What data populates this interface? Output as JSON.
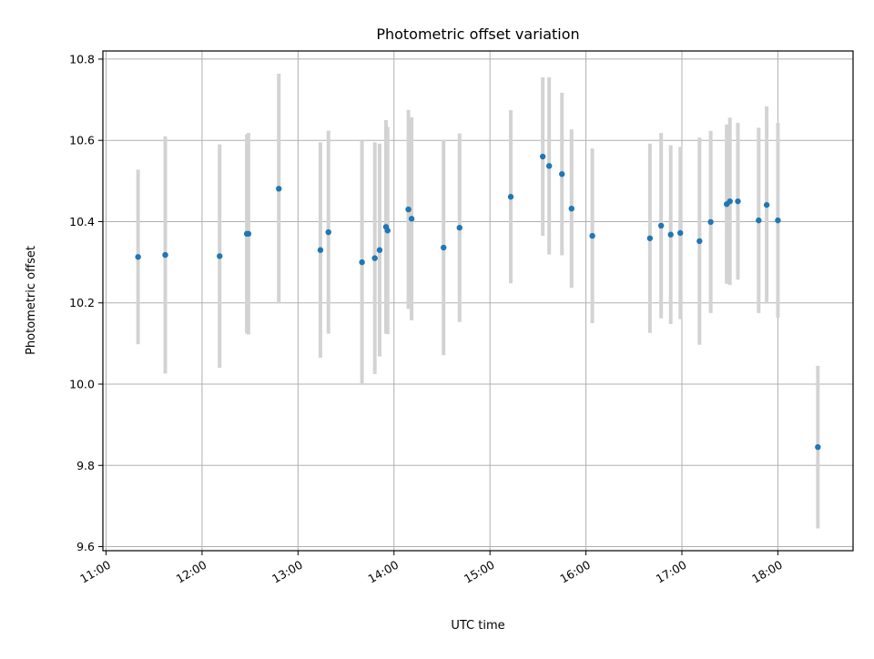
{
  "chart_data": {
    "type": "scatter",
    "title": "Photometric offset variation",
    "xlabel": "UTC time",
    "ylabel": "Photometric offset",
    "xlim": [
      "10:58",
      "18:47"
    ],
    "ylim": [
      9.59,
      10.82
    ],
    "xticks": [
      "11:00",
      "12:00",
      "13:00",
      "14:00",
      "15:00",
      "16:00",
      "17:00",
      "18:00"
    ],
    "yticks": [
      9.6,
      9.8,
      10.0,
      10.2,
      10.4,
      10.6,
      10.8
    ],
    "grid": true,
    "colors": {
      "points": "#1f77b4",
      "errorbars": "#d3d3d3",
      "grid": "#b0b0b0"
    },
    "series": [
      {
        "points": [
          {
            "x": "11:20",
            "y": 10.313,
            "yerr": 0.215
          },
          {
            "x": "11:37",
            "y": 10.318,
            "yerr": 0.292
          },
          {
            "x": "12:11",
            "y": 10.315,
            "yerr": 0.275
          },
          {
            "x": "12:28",
            "y": 10.37,
            "yerr": 0.245
          },
          {
            "x": "12:29",
            "y": 10.37,
            "yerr": 0.248
          },
          {
            "x": "12:48",
            "y": 10.481,
            "yerr": 0.283
          },
          {
            "x": "13:14",
            "y": 10.33,
            "yerr": 0.265
          },
          {
            "x": "13:19",
            "y": 10.374,
            "yerr": 0.25
          },
          {
            "x": "13:40",
            "y": 10.3,
            "yerr": 0.3
          },
          {
            "x": "13:48",
            "y": 10.31,
            "yerr": 0.285
          },
          {
            "x": "13:51",
            "y": 10.33,
            "yerr": 0.262
          },
          {
            "x": "13:55",
            "y": 10.387,
            "yerr": 0.263
          },
          {
            "x": "13:56",
            "y": 10.378,
            "yerr": 0.255
          },
          {
            "x": "14:09",
            "y": 10.43,
            "yerr": 0.245
          },
          {
            "x": "14:11",
            "y": 10.407,
            "yerr": 0.25
          },
          {
            "x": "14:31",
            "y": 10.336,
            "yerr": 0.265
          },
          {
            "x": "14:41",
            "y": 10.385,
            "yerr": 0.232
          },
          {
            "x": "15:13",
            "y": 10.461,
            "yerr": 0.213
          },
          {
            "x": "15:33",
            "y": 10.56,
            "yerr": 0.195
          },
          {
            "x": "15:37",
            "y": 10.537,
            "yerr": 0.218
          },
          {
            "x": "15:45",
            "y": 10.517,
            "yerr": 0.2
          },
          {
            "x": "15:51",
            "y": 10.432,
            "yerr": 0.195
          },
          {
            "x": "16:04",
            "y": 10.365,
            "yerr": 0.215
          },
          {
            "x": "16:40",
            "y": 10.359,
            "yerr": 0.233
          },
          {
            "x": "16:47",
            "y": 10.39,
            "yerr": 0.228
          },
          {
            "x": "16:53",
            "y": 10.368,
            "yerr": 0.22
          },
          {
            "x": "16:59",
            "y": 10.372,
            "yerr": 0.212
          },
          {
            "x": "17:11",
            "y": 10.352,
            "yerr": 0.255
          },
          {
            "x": "17:18",
            "y": 10.399,
            "yerr": 0.224
          },
          {
            "x": "17:28",
            "y": 10.443,
            "yerr": 0.196
          },
          {
            "x": "17:30",
            "y": 10.45,
            "yerr": 0.206
          },
          {
            "x": "17:35",
            "y": 10.45,
            "yerr": 0.193
          },
          {
            "x": "17:48",
            "y": 10.403,
            "yerr": 0.228
          },
          {
            "x": "17:53",
            "y": 10.441,
            "yerr": 0.243
          },
          {
            "x": "18:00",
            "y": 10.403,
            "yerr": 0.24
          },
          {
            "x": "18:25",
            "y": 9.845,
            "yerr": 0.2
          }
        ]
      }
    ]
  }
}
